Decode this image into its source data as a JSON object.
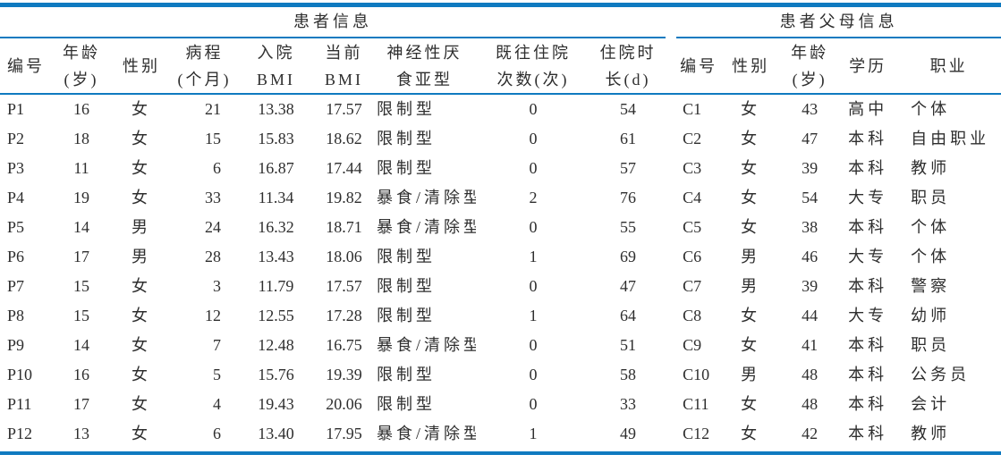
{
  "table": {
    "group_headers": {
      "patient": "患者信息",
      "parent": "患者父母信息"
    },
    "patient_columns": [
      {
        "line1": "编号",
        "line2": ""
      },
      {
        "line1": "年龄",
        "line2": "(岁)"
      },
      {
        "line1": "性别",
        "line2": ""
      },
      {
        "line1": "病程",
        "line2": "(个月)"
      },
      {
        "line1": "入院",
        "line2": "BMI"
      },
      {
        "line1": "当前",
        "line2": "BMI"
      },
      {
        "line1": "神经性厌",
        "line2": "食亚型"
      },
      {
        "line1": "既往住院",
        "line2": "次数(次)"
      },
      {
        "line1": "住院时",
        "line2": "长(d)"
      }
    ],
    "parent_columns": [
      {
        "line1": "编号",
        "line2": ""
      },
      {
        "line1": "性别",
        "line2": ""
      },
      {
        "line1": "年龄",
        "line2": "(岁)"
      },
      {
        "line1": "学历",
        "line2": ""
      },
      {
        "line1": "职业",
        "line2": ""
      }
    ],
    "rows": [
      {
        "p_id": "P1",
        "p_age": "16",
        "p_sex": "女",
        "p_course": "21",
        "p_bmi_in": "13.38",
        "p_bmi_now": "17.57",
        "p_subtype": "限制型",
        "p_prev": "0",
        "p_stay": "54",
        "c_id": "C1",
        "c_sex": "女",
        "c_age": "43",
        "c_edu": "高中",
        "c_job": "个体"
      },
      {
        "p_id": "P2",
        "p_age": "18",
        "p_sex": "女",
        "p_course": "15",
        "p_bmi_in": "15.83",
        "p_bmi_now": "18.62",
        "p_subtype": "限制型",
        "p_prev": "0",
        "p_stay": "61",
        "c_id": "C2",
        "c_sex": "女",
        "c_age": "47",
        "c_edu": "本科",
        "c_job": "自由职业"
      },
      {
        "p_id": "P3",
        "p_age": "11",
        "p_sex": "女",
        "p_course": "6",
        "p_bmi_in": "16.87",
        "p_bmi_now": "17.44",
        "p_subtype": "限制型",
        "p_prev": "0",
        "p_stay": "57",
        "c_id": "C3",
        "c_sex": "女",
        "c_age": "39",
        "c_edu": "本科",
        "c_job": "教师"
      },
      {
        "p_id": "P4",
        "p_age": "19",
        "p_sex": "女",
        "p_course": "33",
        "p_bmi_in": "11.34",
        "p_bmi_now": "19.82",
        "p_subtype": "暴食/清除型",
        "p_prev": "2",
        "p_stay": "76",
        "c_id": "C4",
        "c_sex": "女",
        "c_age": "54",
        "c_edu": "大专",
        "c_job": "职员"
      },
      {
        "p_id": "P5",
        "p_age": "14",
        "p_sex": "男",
        "p_course": "24",
        "p_bmi_in": "16.32",
        "p_bmi_now": "18.71",
        "p_subtype": "暴食/清除型",
        "p_prev": "0",
        "p_stay": "55",
        "c_id": "C5",
        "c_sex": "女",
        "c_age": "38",
        "c_edu": "本科",
        "c_job": "个体"
      },
      {
        "p_id": "P6",
        "p_age": "17",
        "p_sex": "男",
        "p_course": "28",
        "p_bmi_in": "13.43",
        "p_bmi_now": "18.06",
        "p_subtype": "限制型",
        "p_prev": "1",
        "p_stay": "69",
        "c_id": "C6",
        "c_sex": "男",
        "c_age": "46",
        "c_edu": "大专",
        "c_job": "个体"
      },
      {
        "p_id": "P7",
        "p_age": "15",
        "p_sex": "女",
        "p_course": "3",
        "p_bmi_in": "11.79",
        "p_bmi_now": "17.57",
        "p_subtype": "限制型",
        "p_prev": "0",
        "p_stay": "47",
        "c_id": "C7",
        "c_sex": "男",
        "c_age": "39",
        "c_edu": "本科",
        "c_job": "警察"
      },
      {
        "p_id": "P8",
        "p_age": "15",
        "p_sex": "女",
        "p_course": "12",
        "p_bmi_in": "12.55",
        "p_bmi_now": "17.28",
        "p_subtype": "限制型",
        "p_prev": "1",
        "p_stay": "64",
        "c_id": "C8",
        "c_sex": "女",
        "c_age": "44",
        "c_edu": "大专",
        "c_job": "幼师"
      },
      {
        "p_id": "P9",
        "p_age": "14",
        "p_sex": "女",
        "p_course": "7",
        "p_bmi_in": "12.48",
        "p_bmi_now": "16.75",
        "p_subtype": "暴食/清除型",
        "p_prev": "0",
        "p_stay": "51",
        "c_id": "C9",
        "c_sex": "女",
        "c_age": "41",
        "c_edu": "本科",
        "c_job": "职员"
      },
      {
        "p_id": "P10",
        "p_age": "16",
        "p_sex": "女",
        "p_course": "5",
        "p_bmi_in": "15.76",
        "p_bmi_now": "19.39",
        "p_subtype": "限制型",
        "p_prev": "0",
        "p_stay": "58",
        "c_id": "C10",
        "c_sex": "男",
        "c_age": "48",
        "c_edu": "本科",
        "c_job": "公务员"
      },
      {
        "p_id": "P11",
        "p_age": "17",
        "p_sex": "女",
        "p_course": "4",
        "p_bmi_in": "19.43",
        "p_bmi_now": "20.06",
        "p_subtype": "限制型",
        "p_prev": "0",
        "p_stay": "33",
        "c_id": "C11",
        "c_sex": "女",
        "c_age": "48",
        "c_edu": "本科",
        "c_job": "会计"
      },
      {
        "p_id": "P12",
        "p_age": "13",
        "p_sex": "女",
        "p_course": "6",
        "p_bmi_in": "13.40",
        "p_bmi_now": "17.95",
        "p_subtype": "暴食/清除型",
        "p_prev": "1",
        "p_stay": "49",
        "c_id": "C12",
        "c_sex": "女",
        "c_age": "42",
        "c_edu": "本科",
        "c_job": "教师"
      }
    ],
    "accent_color": "#0f7ac0"
  }
}
